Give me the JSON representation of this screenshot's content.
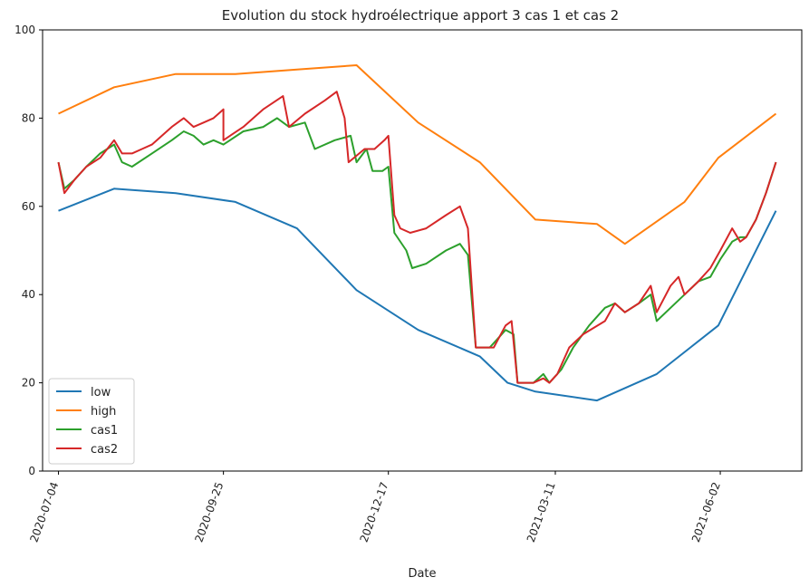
{
  "chart_data": {
    "type": "line",
    "title": "Evolution du stock hydroélectrique apport 3 cas 1 et cas 2",
    "xlabel": "Date",
    "ylabel": "",
    "ylim": [
      0,
      100
    ],
    "xlim": [
      "2020-06-26",
      "2021-07-13"
    ],
    "yticks": [
      0,
      20,
      40,
      60,
      80,
      100
    ],
    "xticks": [
      "2020-07-04",
      "2020-09-25",
      "2020-12-17",
      "2021-03-11",
      "2021-06-02"
    ],
    "grid": false,
    "legend_position": "lower-left",
    "series": [
      {
        "name": "low",
        "color": "#1f77b4",
        "points": [
          [
            "2020-07-04",
            59
          ],
          [
            "2020-08-01",
            64
          ],
          [
            "2020-09-01",
            63
          ],
          [
            "2020-10-01",
            61
          ],
          [
            "2020-11-01",
            55
          ],
          [
            "2020-12-01",
            41
          ],
          [
            "2021-01-01",
            32
          ],
          [
            "2021-02-01",
            26
          ],
          [
            "2021-02-15",
            20
          ],
          [
            "2021-03-01",
            18
          ],
          [
            "2021-04-01",
            16
          ],
          [
            "2021-05-01",
            22
          ],
          [
            "2021-06-01",
            33
          ],
          [
            "2021-06-30",
            59
          ]
        ]
      },
      {
        "name": "high",
        "color": "#ff7f0e",
        "points": [
          [
            "2020-07-04",
            81
          ],
          [
            "2020-08-01",
            87
          ],
          [
            "2020-09-01",
            90
          ],
          [
            "2020-10-01",
            90
          ],
          [
            "2020-11-01",
            91
          ],
          [
            "2020-12-01",
            92
          ],
          [
            "2021-01-01",
            79
          ],
          [
            "2021-02-01",
            70
          ],
          [
            "2021-03-01",
            57
          ],
          [
            "2021-04-01",
            56
          ],
          [
            "2021-04-15",
            51.5
          ],
          [
            "2021-05-15",
            61
          ],
          [
            "2021-06-01",
            71
          ],
          [
            "2021-06-30",
            81
          ]
        ]
      },
      {
        "name": "cas1",
        "color": "#2ca02c",
        "points": [
          [
            "2020-07-04",
            70
          ],
          [
            "2020-07-07",
            64
          ],
          [
            "2020-07-12",
            66
          ],
          [
            "2020-07-18",
            69
          ],
          [
            "2020-07-25",
            72
          ],
          [
            "2020-08-01",
            74
          ],
          [
            "2020-08-05",
            70
          ],
          [
            "2020-08-10",
            69
          ],
          [
            "2020-08-20",
            72
          ],
          [
            "2020-08-30",
            75
          ],
          [
            "2020-09-05",
            77
          ],
          [
            "2020-09-10",
            76
          ],
          [
            "2020-09-15",
            74
          ],
          [
            "2020-09-20",
            75
          ],
          [
            "2020-09-25",
            74
          ],
          [
            "2020-10-05",
            77
          ],
          [
            "2020-10-15",
            78
          ],
          [
            "2020-10-22",
            80
          ],
          [
            "2020-10-28",
            78
          ],
          [
            "2020-11-05",
            79
          ],
          [
            "2020-11-10",
            73
          ],
          [
            "2020-11-20",
            75
          ],
          [
            "2020-11-28",
            76
          ],
          [
            "2020-12-01",
            70
          ],
          [
            "2020-12-06",
            73
          ],
          [
            "2020-12-09",
            68
          ],
          [
            "2020-12-14",
            68
          ],
          [
            "2020-12-17",
            69
          ],
          [
            "2020-12-20",
            54
          ],
          [
            "2020-12-26",
            50
          ],
          [
            "2020-12-29",
            46
          ],
          [
            "2021-01-05",
            47
          ],
          [
            "2021-01-15",
            50
          ],
          [
            "2021-01-22",
            51.5
          ],
          [
            "2021-01-26",
            49
          ],
          [
            "2021-01-30",
            28
          ],
          [
            "2021-02-06",
            28
          ],
          [
            "2021-02-10",
            30
          ],
          [
            "2021-02-14",
            32
          ],
          [
            "2021-02-18",
            31
          ],
          [
            "2021-02-20",
            20
          ],
          [
            "2021-02-28",
            20
          ],
          [
            "2021-03-05",
            22
          ],
          [
            "2021-03-08",
            20
          ],
          [
            "2021-03-14",
            23
          ],
          [
            "2021-03-20",
            28
          ],
          [
            "2021-03-28",
            33
          ],
          [
            "2021-04-05",
            37
          ],
          [
            "2021-04-10",
            38
          ],
          [
            "2021-04-15",
            36
          ],
          [
            "2021-04-22",
            38
          ],
          [
            "2021-04-28",
            40
          ],
          [
            "2021-05-01",
            34
          ],
          [
            "2021-05-08",
            37
          ],
          [
            "2021-05-15",
            40
          ],
          [
            "2021-05-22",
            43
          ],
          [
            "2021-05-28",
            44
          ],
          [
            "2021-06-02",
            48
          ],
          [
            "2021-06-08",
            52
          ],
          [
            "2021-06-12",
            53
          ],
          [
            "2021-06-15",
            53
          ],
          [
            "2021-06-20",
            57
          ],
          [
            "2021-06-25",
            63
          ],
          [
            "2021-06-30",
            70
          ]
        ]
      },
      {
        "name": "cas2",
        "color": "#d62728",
        "points": [
          [
            "2020-07-04",
            70
          ],
          [
            "2020-07-07",
            63
          ],
          [
            "2020-07-12",
            66
          ],
          [
            "2020-07-18",
            69
          ],
          [
            "2020-07-25",
            71
          ],
          [
            "2020-08-01",
            75
          ],
          [
            "2020-08-05",
            72
          ],
          [
            "2020-08-10",
            72
          ],
          [
            "2020-08-15",
            73
          ],
          [
            "2020-08-20",
            74
          ],
          [
            "2020-08-30",
            78
          ],
          [
            "2020-09-05",
            80
          ],
          [
            "2020-09-10",
            78
          ],
          [
            "2020-09-15",
            79
          ],
          [
            "2020-09-20",
            80
          ],
          [
            "2020-09-25",
            82
          ],
          [
            "2020-09-25",
            75
          ],
          [
            "2020-10-05",
            78
          ],
          [
            "2020-10-15",
            82
          ],
          [
            "2020-10-25",
            85
          ],
          [
            "2020-10-28",
            78
          ],
          [
            "2020-11-05",
            81
          ],
          [
            "2020-11-15",
            84
          ],
          [
            "2020-11-21",
            86
          ],
          [
            "2020-11-25",
            80
          ],
          [
            "2020-11-27",
            70
          ],
          [
            "2020-12-05",
            73
          ],
          [
            "2020-12-10",
            73
          ],
          [
            "2020-12-15",
            75
          ],
          [
            "2020-12-17",
            76
          ],
          [
            "2020-12-20",
            58
          ],
          [
            "2020-12-23",
            55
          ],
          [
            "2020-12-28",
            54
          ],
          [
            "2021-01-05",
            55
          ],
          [
            "2021-01-15",
            58
          ],
          [
            "2021-01-22",
            60
          ],
          [
            "2021-01-26",
            55
          ],
          [
            "2021-01-30",
            28
          ],
          [
            "2021-02-08",
            28
          ],
          [
            "2021-02-14",
            33
          ],
          [
            "2021-02-17",
            34
          ],
          [
            "2021-02-20",
            20
          ],
          [
            "2021-02-28",
            20
          ],
          [
            "2021-03-05",
            21
          ],
          [
            "2021-03-08",
            20
          ],
          [
            "2021-03-12",
            22
          ],
          [
            "2021-03-18",
            28
          ],
          [
            "2021-03-25",
            31
          ],
          [
            "2021-04-05",
            34
          ],
          [
            "2021-04-10",
            38
          ],
          [
            "2021-04-15",
            36
          ],
          [
            "2021-04-22",
            38
          ],
          [
            "2021-04-28",
            42
          ],
          [
            "2021-05-01",
            36
          ],
          [
            "2021-05-08",
            42
          ],
          [
            "2021-05-12",
            44
          ],
          [
            "2021-05-15",
            40
          ],
          [
            "2021-05-22",
            43
          ],
          [
            "2021-05-28",
            46
          ],
          [
            "2021-06-02",
            50
          ],
          [
            "2021-06-08",
            55
          ],
          [
            "2021-06-12",
            52
          ],
          [
            "2021-06-15",
            53
          ],
          [
            "2021-06-20",
            57
          ],
          [
            "2021-06-25",
            63
          ],
          [
            "2021-06-30",
            70
          ]
        ]
      }
    ]
  }
}
